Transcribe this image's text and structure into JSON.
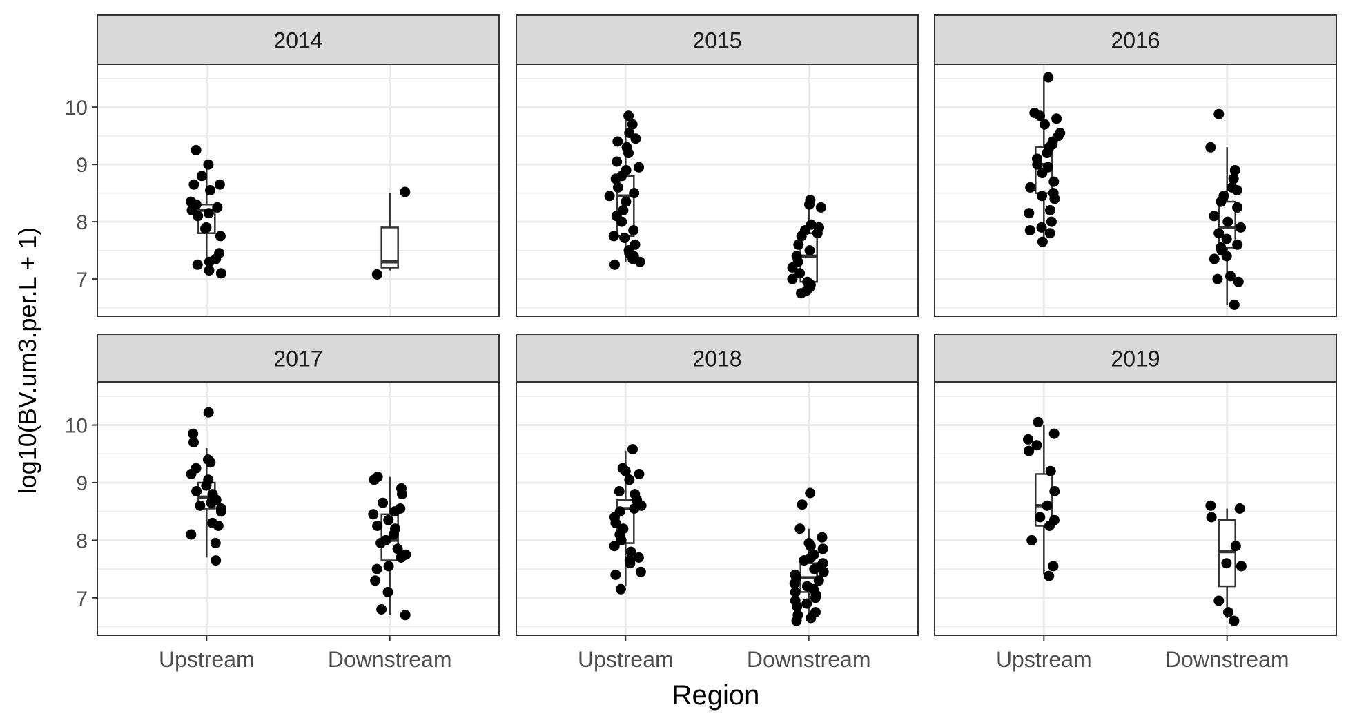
{
  "chart_data": {
    "type": "boxplot-faceted",
    "ylabel": "log10(BV.um3.per.L + 1)",
    "xlabel": "Region",
    "categories": [
      "Upstream",
      "Downstream"
    ],
    "y_ticks": [
      "7",
      "8",
      "9",
      "10"
    ],
    "ylim": [
      6.35,
      10.75
    ],
    "grid": true,
    "colors": {
      "points": "#000000",
      "box_stroke": "#333333",
      "strip_fill": "#d9d9d9",
      "grid": "#ebebeb",
      "frame": "#333333"
    },
    "panels": [
      {
        "year": "2014",
        "groups": [
          {
            "region": "Upstream",
            "box": {
              "whisker_low": 7.1,
              "q1": 7.8,
              "median": 8.2,
              "q3": 8.3,
              "whisker_high": 9.0
            },
            "points": [
              9.25,
              9.0,
              8.8,
              8.65,
              8.65,
              8.55,
              8.35,
              8.3,
              8.25,
              8.2,
              8.15,
              8.1,
              7.9,
              7.88,
              7.75,
              7.45,
              7.35,
              7.3,
              7.25,
              7.15,
              7.1
            ]
          },
          {
            "region": "Downstream",
            "box": {
              "whisker_low": 7.15,
              "q1": 7.2,
              "median": 7.3,
              "q3": 7.9,
              "whisker_high": 8.5
            },
            "points": [
              8.52,
              7.08
            ]
          }
        ]
      },
      {
        "year": "2015",
        "groups": [
          {
            "region": "Upstream",
            "box": {
              "whisker_low": 7.3,
              "q1": 7.75,
              "median": 8.45,
              "q3": 8.8,
              "whisker_high": 9.8
            },
            "points": [
              9.85,
              9.7,
              9.55,
              9.45,
              9.4,
              9.3,
              9.2,
              9.05,
              8.95,
              8.9,
              8.8,
              8.75,
              8.6,
              8.5,
              8.45,
              8.35,
              8.2,
              8.1,
              8.0,
              7.85,
              7.75,
              7.72,
              7.6,
              7.5,
              7.45,
              7.4,
              7.35,
              7.3,
              7.25
            ]
          },
          {
            "region": "Downstream",
            "box": {
              "whisker_low": 6.8,
              "q1": 6.95,
              "median": 7.4,
              "q3": 7.8,
              "whisker_high": 8.35
            },
            "points": [
              8.38,
              8.3,
              8.25,
              7.95,
              7.9,
              7.85,
              7.8,
              7.75,
              7.6,
              7.5,
              7.4,
              7.3,
              7.2,
              7.1,
              7.0,
              6.95,
              6.9,
              6.85,
              6.8,
              6.75
            ]
          }
        ]
      },
      {
        "year": "2016",
        "groups": [
          {
            "region": "Upstream",
            "box": {
              "whisker_low": 7.7,
              "q1": 8.5,
              "median": 9.0,
              "q3": 9.3,
              "whisker_high": 10.5
            },
            "points": [
              10.52,
              9.9,
              9.85,
              9.8,
              9.7,
              9.55,
              9.5,
              9.4,
              9.35,
              9.3,
              9.2,
              9.1,
              9.0,
              8.95,
              8.85,
              8.7,
              8.6,
              8.5,
              8.45,
              8.4,
              8.2,
              8.15,
              8.0,
              7.9,
              7.85,
              7.8,
              7.65
            ]
          },
          {
            "region": "Downstream",
            "box": {
              "whisker_low": 6.55,
              "q1": 7.55,
              "median": 7.9,
              "q3": 8.35,
              "whisker_high": 9.3
            },
            "points": [
              9.88,
              9.3,
              8.9,
              8.75,
              8.6,
              8.55,
              8.45,
              8.35,
              8.25,
              8.1,
              8.0,
              7.9,
              7.8,
              7.7,
              7.6,
              7.55,
              7.5,
              7.4,
              7.35,
              7.05,
              7.0,
              6.95,
              6.55
            ]
          }
        ]
      },
      {
        "year": "2017",
        "groups": [
          {
            "region": "Upstream",
            "box": {
              "whisker_low": 7.7,
              "q1": 8.55,
              "median": 8.75,
              "q3": 9.0,
              "whisker_high": 9.6
            },
            "points": [
              10.22,
              9.85,
              9.7,
              9.4,
              9.35,
              9.25,
              9.15,
              9.05,
              8.95,
              8.85,
              8.8,
              8.7,
              8.65,
              8.6,
              8.55,
              8.5,
              8.3,
              8.25,
              8.1,
              7.95,
              7.65
            ]
          },
          {
            "region": "Downstream",
            "box": {
              "whisker_low": 6.7,
              "q1": 7.65,
              "median": 8.0,
              "q3": 8.45,
              "whisker_high": 9.1
            },
            "points": [
              9.1,
              9.05,
              8.9,
              8.8,
              8.65,
              8.55,
              8.5,
              8.45,
              8.35,
              8.25,
              8.2,
              8.1,
              8.0,
              7.95,
              7.85,
              7.75,
              7.7,
              7.55,
              7.5,
              7.3,
              7.1,
              6.8,
              6.7
            ]
          }
        ]
      },
      {
        "year": "2018",
        "groups": [
          {
            "region": "Upstream",
            "box": {
              "whisker_low": 7.2,
              "q1": 7.95,
              "median": 8.55,
              "q3": 8.7,
              "whisker_high": 9.55
            },
            "points": [
              9.58,
              9.25,
              9.2,
              9.15,
              9.05,
              8.85,
              8.8,
              8.7,
              8.6,
              8.55,
              8.5,
              8.4,
              8.3,
              8.2,
              8.1,
              8.0,
              7.9,
              7.8,
              7.7,
              7.65,
              7.6,
              7.45,
              7.4,
              7.15
            ]
          },
          {
            "region": "Downstream",
            "box": {
              "whisker_low": 6.6,
              "q1": 7.1,
              "median": 7.35,
              "q3": 7.6,
              "whisker_high": 8.2
            },
            "points": [
              8.82,
              8.62,
              8.2,
              8.05,
              7.95,
              7.9,
              7.85,
              7.75,
              7.7,
              7.65,
              7.6,
              7.55,
              7.5,
              7.45,
              7.4,
              7.35,
              7.3,
              7.25,
              7.2,
              7.15,
              7.1,
              7.05,
              7.0,
              6.95,
              6.9,
              6.85,
              6.75,
              6.7,
              6.65,
              6.6
            ]
          }
        ]
      },
      {
        "year": "2019",
        "groups": [
          {
            "region": "Upstream",
            "box": {
              "whisker_low": 7.4,
              "q1": 8.25,
              "median": 8.6,
              "q3": 9.15,
              "whisker_high": 10.0
            },
            "points": [
              10.05,
              9.85,
              9.75,
              9.65,
              9.55,
              9.2,
              8.85,
              8.6,
              8.4,
              8.35,
              8.25,
              8.0,
              7.55,
              7.38
            ]
          },
          {
            "region": "Downstream",
            "box": {
              "whisker_low": 6.65,
              "q1": 7.2,
              "median": 7.8,
              "q3": 8.35,
              "whisker_high": 8.55
            },
            "points": [
              8.6,
              8.55,
              8.4,
              7.9,
              7.6,
              7.55,
              6.95,
              6.75,
              6.6
            ]
          }
        ]
      }
    ]
  }
}
